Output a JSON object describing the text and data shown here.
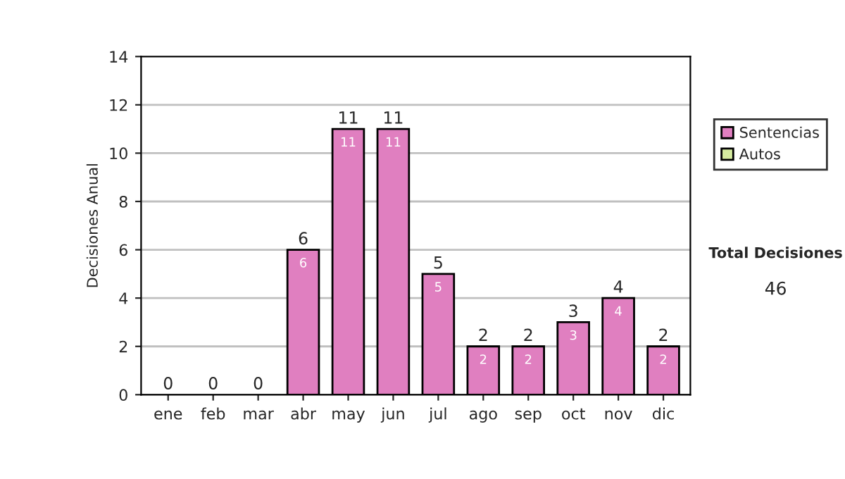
{
  "chart_data": {
    "type": "bar",
    "stacked": true,
    "ylabel": "Decisiones Anual",
    "categories": [
      "ene",
      "feb",
      "mar",
      "abr",
      "may",
      "jun",
      "jul",
      "ago",
      "sep",
      "oct",
      "nov",
      "dic"
    ],
    "series": [
      {
        "name": "Sentencias",
        "color": "#e07fc0",
        "values": [
          0,
          0,
          0,
          6,
          11,
          11,
          5,
          2,
          2,
          3,
          4,
          2
        ],
        "value_labels": [
          null,
          null,
          null,
          "6",
          "11",
          "11",
          "5",
          "2",
          "2",
          "3",
          "4",
          "2"
        ]
      },
      {
        "name": "Autos",
        "color": "#d6eca0",
        "values": [
          0,
          0,
          0,
          0,
          0,
          0,
          0,
          0,
          0,
          0,
          0,
          0
        ]
      }
    ],
    "totals": [
      "0",
      "0",
      "0",
      "6",
      "11",
      "11",
      "5",
      "2",
      "2",
      "3",
      "4",
      "2"
    ],
    "ylim": [
      0,
      14
    ],
    "yticks": [
      0,
      2,
      4,
      6,
      8,
      10,
      12,
      14
    ],
    "grid": "y",
    "legend": "right",
    "annotations": [
      "Total Decisiones",
      "46"
    ]
  }
}
